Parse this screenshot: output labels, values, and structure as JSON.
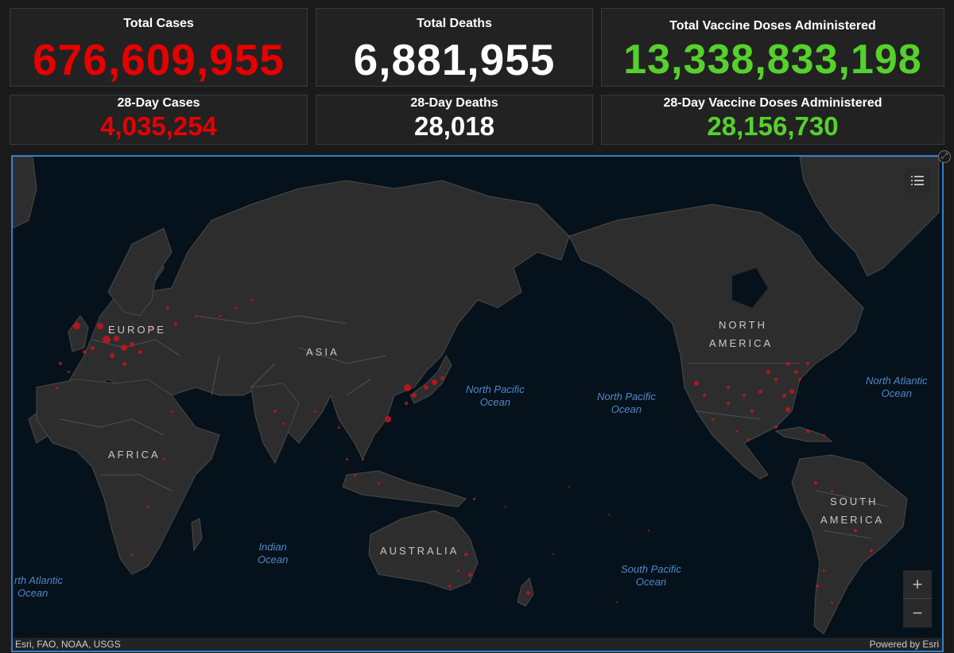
{
  "stats": {
    "total_cases": {
      "label": "Total Cases",
      "value": "676,609,955"
    },
    "total_deaths": {
      "label": "Total Deaths",
      "value": "6,881,955"
    },
    "total_vaccine": {
      "label": "Total Vaccine Doses Administered",
      "value": "13,338,833,198"
    },
    "cases_28": {
      "label": "28-Day Cases",
      "value": "4,035,254"
    },
    "deaths_28": {
      "label": "28-Day Deaths",
      "value": "28,018"
    },
    "vaccine_28": {
      "label": "28-Day Vaccine Doses Administered",
      "value": "28,156,730"
    }
  },
  "colors": {
    "cases": "#e60000",
    "deaths": "#ffffff",
    "vaccine": "#56d12c",
    "map_dot": "#c8141e"
  },
  "map": {
    "continents": {
      "europe": "EUROPE",
      "asia": "ASIA",
      "africa": "AFRICA",
      "australia": "AUSTRALIA",
      "north_america_1": "NORTH",
      "north_america_2": "AMERICA",
      "south_america_1": "SOUTH",
      "south_america_2": "AMERICA"
    },
    "oceans": {
      "npo_west_1": "North Pacific",
      "npo_west_2": "Ocean",
      "npo_east_1": "North Pacific",
      "npo_east_2": "Ocean",
      "nao_1": "North Atlantic",
      "nao_2": "Ocean",
      "sao_1": "rth Atlantic",
      "sao_2": "Ocean",
      "indian_1": "Indian",
      "indian_2": "Ocean",
      "spo_1": "South Pacific",
      "spo_2": "Ocean"
    },
    "attribution_left": "Esri, FAO, NOAA, USGS",
    "attribution_right": "Powered by Esri",
    "icons": {
      "legend": "list-icon",
      "zoom_in": "plus-icon",
      "zoom_out": "minus-icon",
      "expand": "expand-icon"
    },
    "zoom_in_symbol": "+",
    "zoom_out_symbol": "−"
  }
}
